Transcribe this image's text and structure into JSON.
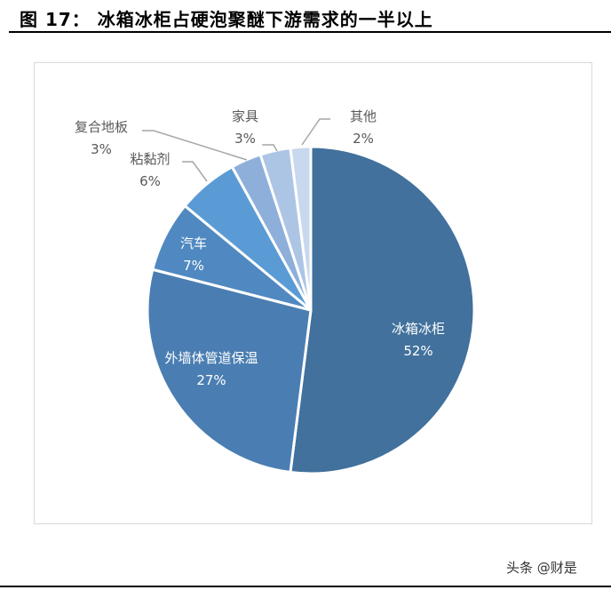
{
  "title": "图 17： 冰箱冰柜占硬泡聚醚下游需求的一半以上",
  "watermark": "头条 @财是",
  "chart_data": {
    "type": "pie",
    "title": "图 17： 冰箱冰柜占硬泡聚醚下游需求的一半以上",
    "categories": [
      "冰箱冰柜",
      "外墙体管道保温",
      "汽车",
      "粘黏剂",
      "复合地板",
      "家具",
      "其他"
    ],
    "values": [
      52,
      27,
      7,
      6,
      3,
      3,
      2
    ],
    "labels": [
      "52%",
      "27%",
      "7%",
      "6%",
      "3%",
      "3%",
      "2%"
    ],
    "colors": [
      "#41719c",
      "#4a7eb2",
      "#5089c1",
      "#5b9bd5",
      "#8eafda",
      "#adc5e5",
      "#c8d8ee"
    ],
    "start": "12 o'clock",
    "direction": "clockwise"
  }
}
